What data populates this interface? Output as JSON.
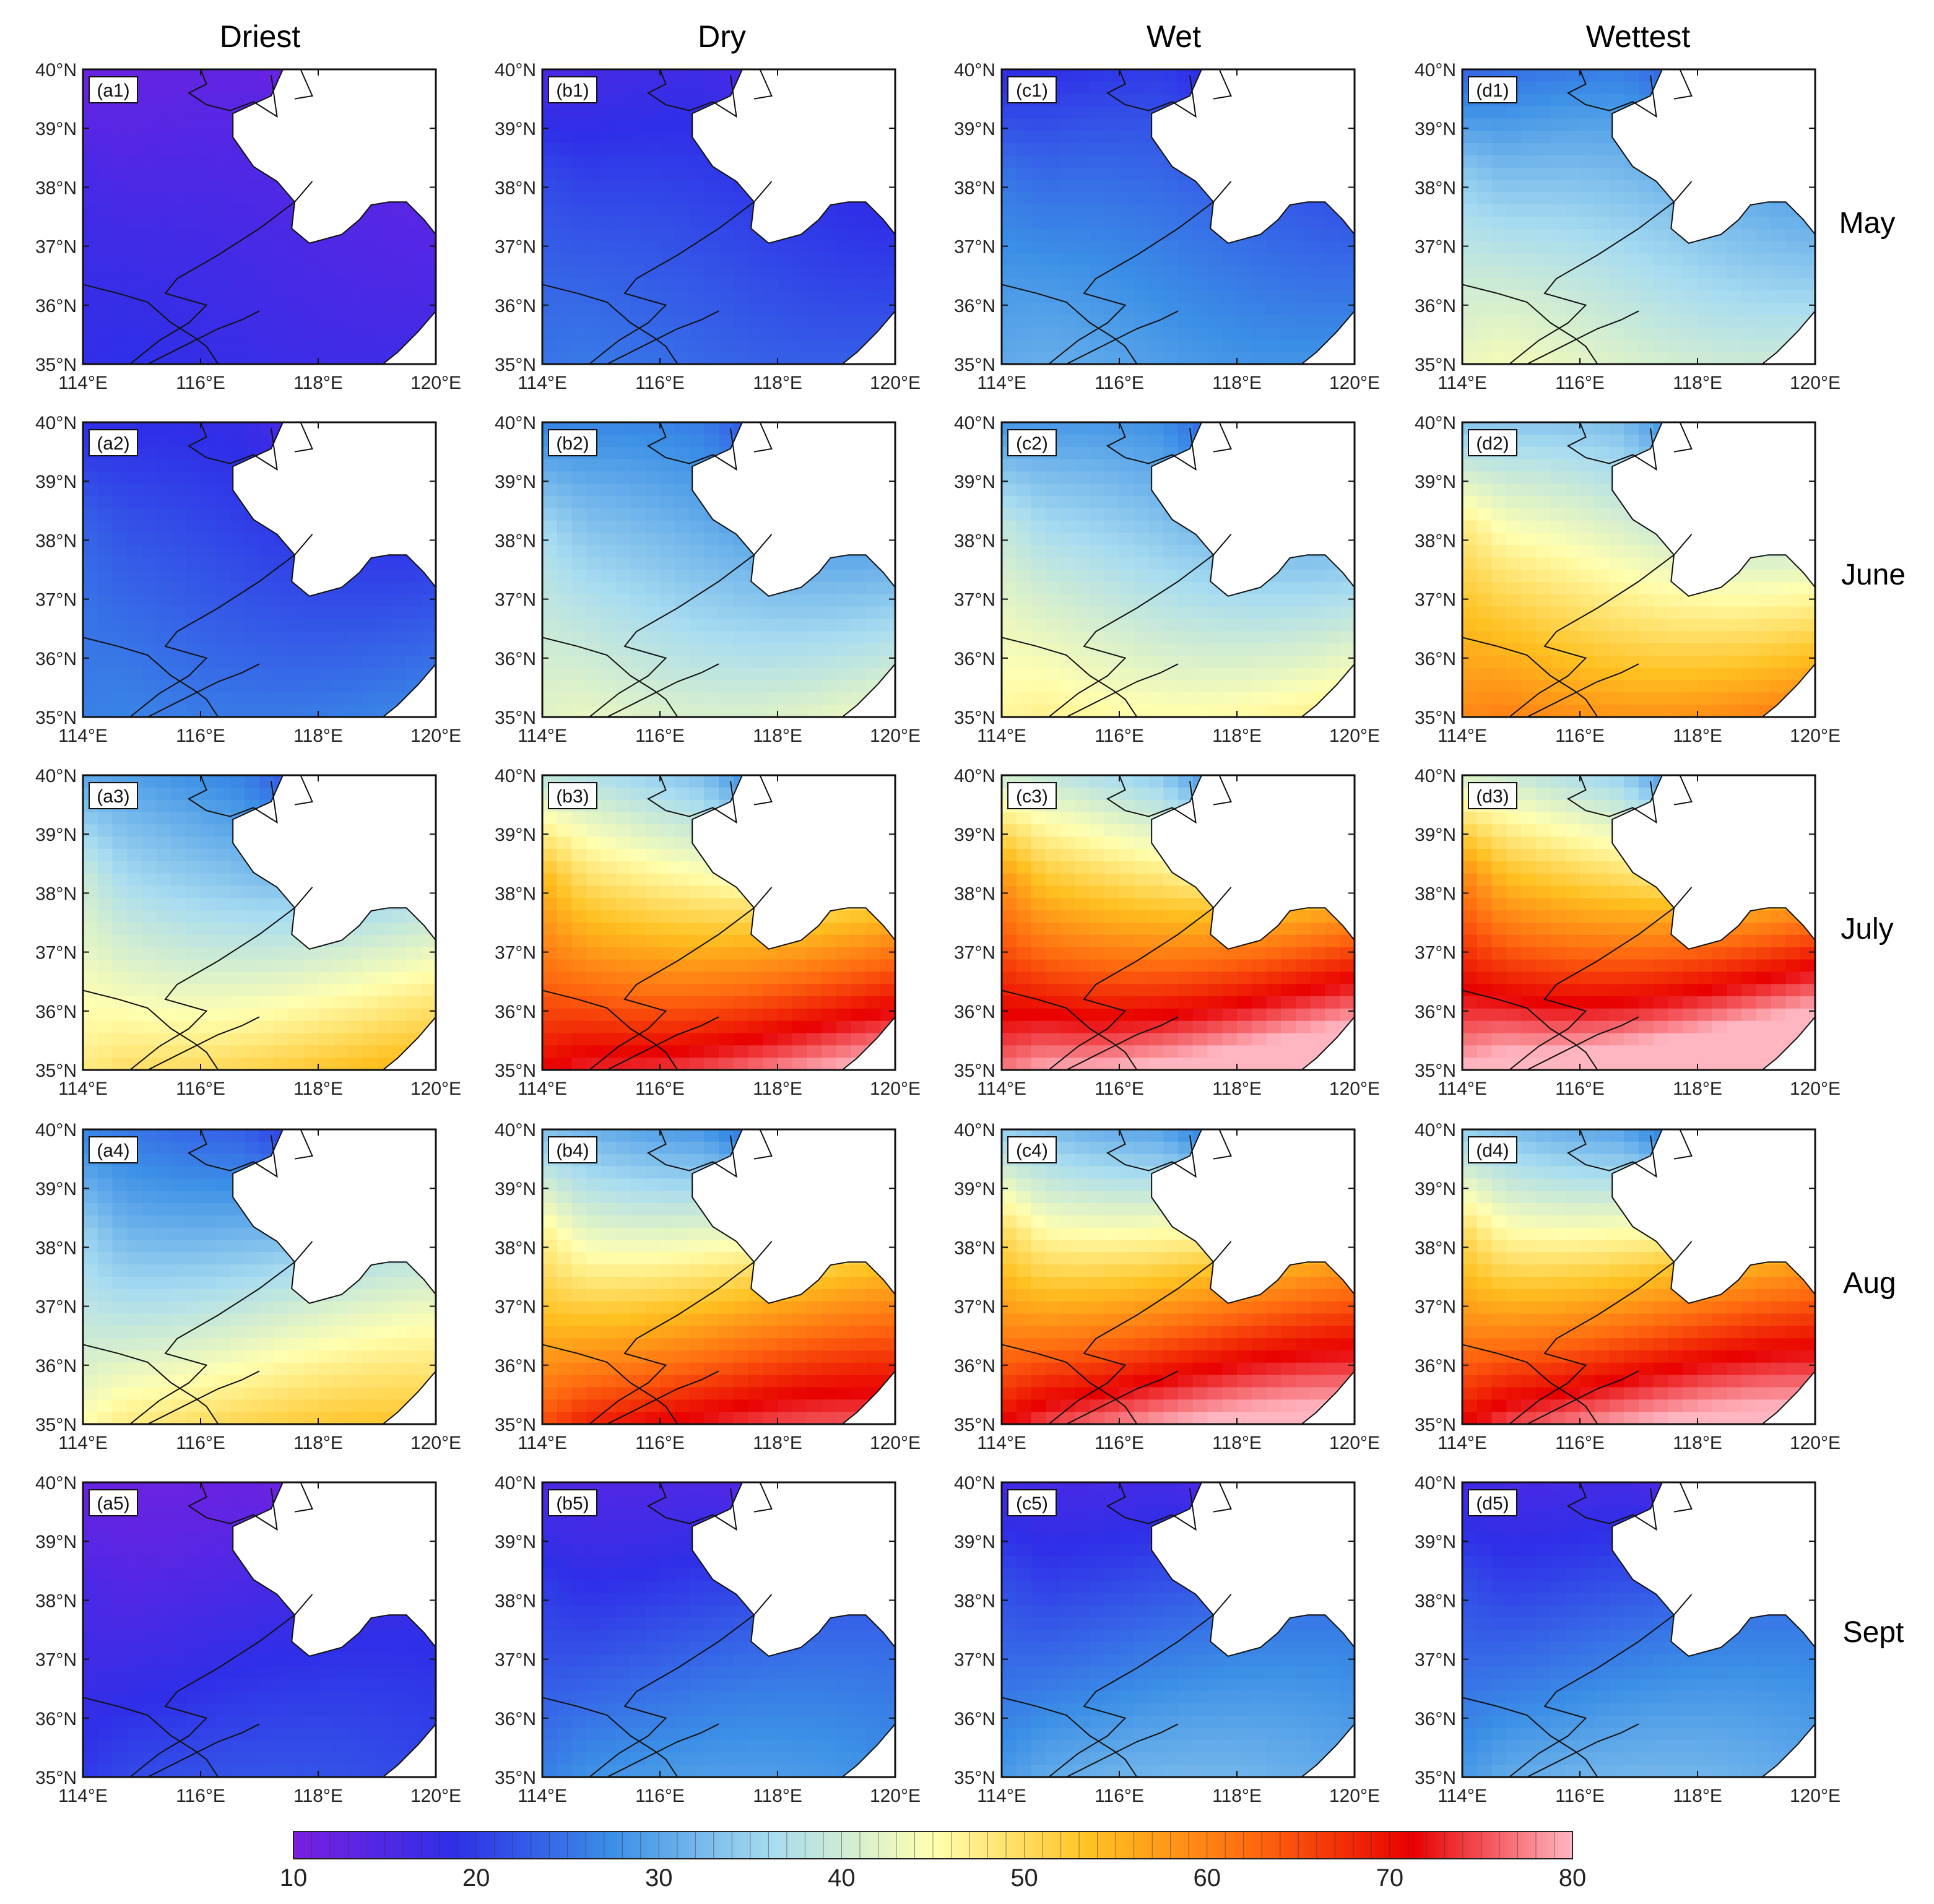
{
  "figure": {
    "column_titles": [
      "Driest",
      "Dry",
      "Wet",
      "Wettest"
    ],
    "row_titles": [
      "May",
      "June",
      "July",
      "Aug",
      "Sept"
    ],
    "lat_ticks": [
      "40°N",
      "39°N",
      "38°N",
      "37°N",
      "36°N",
      "35°N"
    ],
    "lon_ticks": [
      "114°E",
      "116°E",
      "118°E",
      "120°E"
    ],
    "panel_labels": [
      [
        "(a1)",
        "(b1)",
        "(c1)",
        "(d1)"
      ],
      [
        "(a2)",
        "(b2)",
        "(c2)",
        "(d2)"
      ],
      [
        "(a3)",
        "(b3)",
        "(c3)",
        "(d3)"
      ],
      [
        "(a4)",
        "(b4)",
        "(c4)",
        "(d4)"
      ],
      [
        "(a5)",
        "(b5)",
        "(c5)",
        "(d5)"
      ]
    ],
    "colorbar": {
      "min": 10,
      "max": 80,
      "tick_labels": [
        "10",
        "20",
        "30",
        "40",
        "50",
        "60",
        "70",
        "80"
      ],
      "colors": [
        "#7a1fe0",
        "#2f2fe8",
        "#3b8fe6",
        "#a8dcf0",
        "#ffffb0",
        "#ffc020",
        "#ff6a10",
        "#e80000",
        "#ffb6c1"
      ]
    }
  },
  "chart_data": {
    "type": "heatmap",
    "title": "",
    "x_range": [
      114,
      120
    ],
    "y_range": [
      35,
      40
    ],
    "columns": [
      "Driest",
      "Dry",
      "Wet",
      "Wettest"
    ],
    "rows": [
      "May",
      "June",
      "July",
      "Aug",
      "Sept"
    ],
    "value_range": [
      10,
      80
    ],
    "approx_mean_values": [
      [
        15,
        20,
        24,
        33
      ],
      [
        22,
        34,
        37,
        46
      ],
      [
        40,
        56,
        60,
        62
      ],
      [
        38,
        52,
        56,
        56
      ],
      [
        17,
        22,
        24,
        24
      ]
    ]
  }
}
